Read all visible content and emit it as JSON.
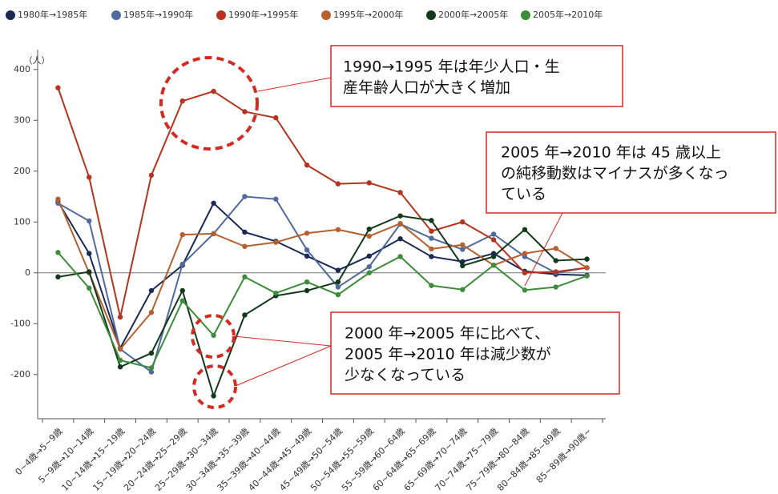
{
  "chart_data": {
    "type": "line",
    "y_unit_label": "（人）",
    "categories": [
      "0~4歳→5~9歳",
      "5~9歳→10~14歳",
      "10~14歳→15~19歳",
      "15~19歳→20~24歳",
      "20~24歳→25~29歳",
      "25~29歳→30~34歳",
      "30~34歳→35~39歳",
      "35~39歳→40~44歳",
      "40~44歳→45~49歳",
      "45~49歳→50~54歳",
      "50~54歳→55~59歳",
      "55~59歳→60~64歳",
      "60~64歳→65~69歳",
      "65~69歳→70~74歳",
      "70~74歳→75~79歳",
      "75~79歳→80~84歳",
      "80~84歳→85~89歳",
      "85~89歳→90歳~"
    ],
    "series": [
      {
        "name": "1980年→1985年",
        "color": "#1b2a55",
        "values": [
          140,
          38,
          -148,
          -35,
          15,
          137,
          80,
          62,
          33,
          5,
          33,
          67,
          32,
          22,
          38,
          3,
          -3,
          -5
        ]
      },
      {
        "name": "1985年→1990年",
        "color": "#4f6a9b",
        "values": [
          137,
          102,
          -150,
          -195,
          17,
          77,
          150,
          145,
          45,
          -28,
          12,
          96,
          68,
          46,
          76,
          32,
          0,
          10
        ]
      },
      {
        "name": "1990年→1995年",
        "color": "#b5331f",
        "values": [
          364,
          188,
          -87,
          192,
          338,
          357,
          317,
          305,
          212,
          175,
          177,
          158,
          82,
          100,
          65,
          0,
          2,
          10
        ]
      },
      {
        "name": "1995年→2000年",
        "color": "#b5602e",
        "values": [
          145,
          0,
          -150,
          -78,
          75,
          77,
          52,
          60,
          78,
          85,
          72,
          97,
          47,
          55,
          15,
          38,
          48,
          10
        ]
      },
      {
        "name": "2000年→2005年",
        "color": "#13391c",
        "values": [
          -8,
          2,
          -185,
          -158,
          -35,
          -242,
          -83,
          -45,
          -35,
          -18,
          86,
          112,
          103,
          14,
          32,
          85,
          24,
          27
        ]
      },
      {
        "name": "2005年→2010年",
        "color": "#3d8c3a",
        "values": [
          40,
          -30,
          -172,
          -187,
          -55,
          -123,
          -8,
          -40,
          -18,
          -43,
          0,
          32,
          -25,
          -33,
          15,
          -34,
          -28,
          -6
        ]
      }
    ],
    "ylim": [
      -287,
      439
    ],
    "yticks": [
      -200,
      -100,
      0,
      100,
      200,
      300,
      400
    ],
    "grid": false,
    "legend": "top",
    "annotations": [
      [
        "1990→1995 年は年少人口・生",
        "産年齢人口が大きく増加"
      ],
      [
        "2005 年→2010 年は 45 歳以上",
        "の純移動数はマイナスが多くなっ",
        "ている"
      ],
      [
        "2000 年→2005 年に比べて、",
        "2005 年→2010 年は減少数が",
        "少なくなっている"
      ]
    ]
  }
}
